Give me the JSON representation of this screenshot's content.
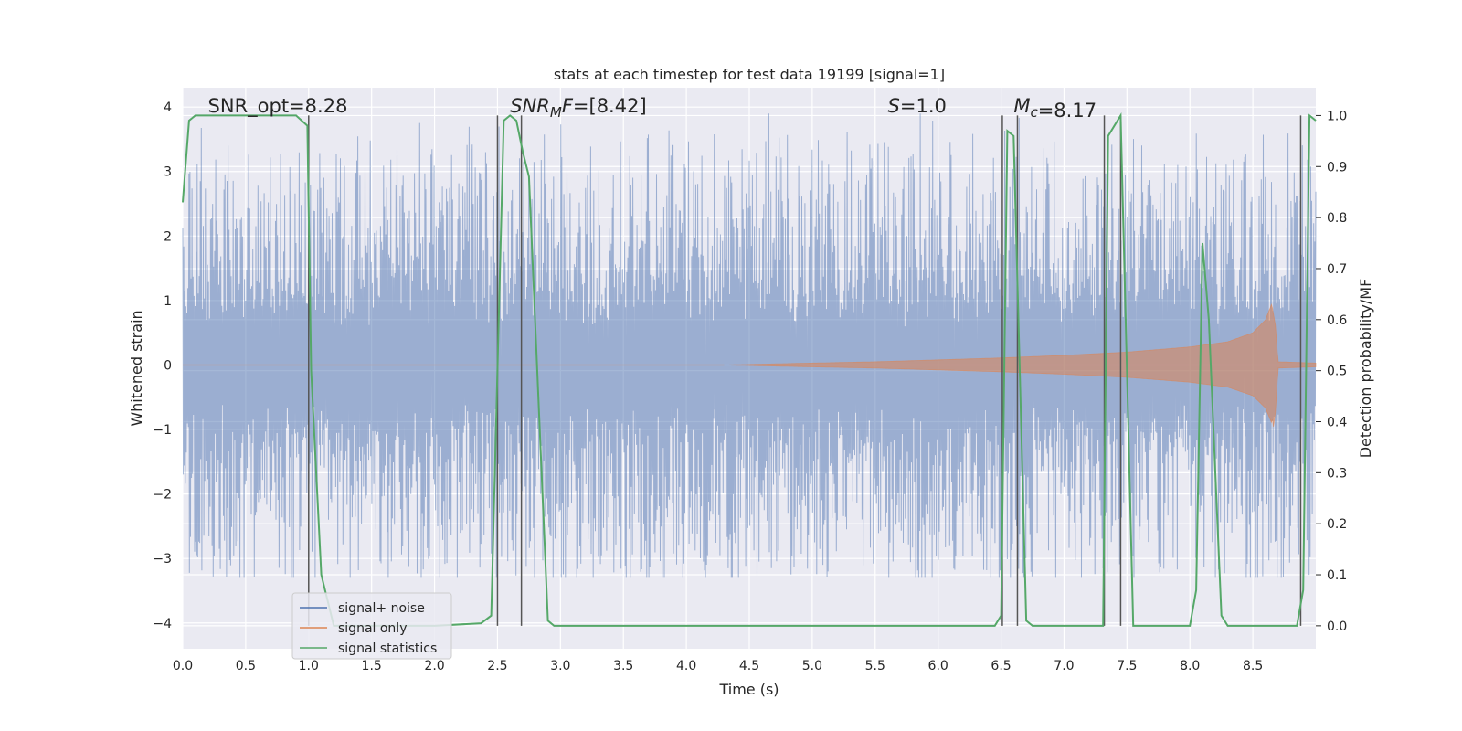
{
  "chart_data": {
    "type": "line",
    "title": "stats at each timestep for test data 19199 [signal=1]",
    "xlabel": "Time (s)",
    "ylabel_left": "Whitened strain",
    "ylabel_right": "Detection probability/MF",
    "xlim": [
      0.0,
      9.0
    ],
    "ylim_left": [
      -4.4,
      4.3
    ],
    "ylim_right": [
      -0.045,
      1.0545
    ],
    "x_ticks": [
      0.0,
      0.5,
      1.0,
      1.5,
      2.0,
      2.5,
      3.0,
      3.5,
      4.0,
      4.5,
      5.0,
      5.5,
      6.0,
      6.5,
      7.0,
      7.5,
      8.0,
      8.5
    ],
    "x_tick_labels": [
      "0.0",
      "0.5",
      "1.0",
      "1.5",
      "2.0",
      "2.5",
      "3.0",
      "3.5",
      "4.0",
      "4.5",
      "5.0",
      "5.5",
      "6.0",
      "6.5",
      "7.0",
      "7.5",
      "8.0",
      "8.5"
    ],
    "y_left_ticks": [
      -4,
      -3,
      -2,
      -1,
      0,
      1,
      2,
      3,
      4
    ],
    "y_left_tick_labels": [
      "−4",
      "−3",
      "−2",
      "−1",
      "0",
      "1",
      "2",
      "3",
      "4"
    ],
    "y_right_ticks": [
      0.0,
      0.1,
      0.2,
      0.3,
      0.4,
      0.5,
      0.6,
      0.7,
      0.8,
      0.9,
      1.0
    ],
    "y_right_tick_labels": [
      "0.0",
      "0.1",
      "0.2",
      "0.3",
      "0.4",
      "0.5",
      "0.6",
      "0.7",
      "0.8",
      "0.9",
      "1.0"
    ],
    "grid": true,
    "annotations": [
      {
        "text": "SNR_opt=8.28",
        "x": 0.2,
        "y": 4.0
      },
      {
        "text": "SNR_MF=[8.42]",
        "x": 2.6,
        "y": 4.0
      },
      {
        "text": "S=1.0",
        "x": 5.6,
        "y": 4.0
      },
      {
        "text": "M_c=8.17",
        "x": 6.6,
        "y": 4.0
      }
    ],
    "vertical_lines_x": [
      1.0,
      2.5,
      2.69,
      6.51,
      6.63,
      7.32,
      7.45,
      8.88
    ],
    "legend": {
      "placement": "lower-left",
      "entries": [
        {
          "label": "signal+ noise",
          "color": "#4c72b0"
        },
        {
          "label": "signal only",
          "color": "#dd8452"
        },
        {
          "label": "signal statistics",
          "color": "#55a868"
        }
      ]
    },
    "series": [
      {
        "name": "signal+ noise",
        "axis": "left",
        "color": "#4c72b0",
        "description": "whitened noisy strain, roughly spanning -3.3 to 3.9",
        "envelope_x": [
          0,
          9
        ],
        "envelope_range": [
          -3.3,
          3.9
        ]
      },
      {
        "name": "signal only",
        "axis": "left",
        "color": "#dd8452",
        "x": [
          4.3,
          5.0,
          5.5,
          6.0,
          6.5,
          7.0,
          7.5,
          8.0,
          8.3,
          8.5,
          8.6,
          8.65,
          8.68,
          8.7,
          9.0
        ],
        "amplitude": [
          0.0,
          0.03,
          0.05,
          0.08,
          0.11,
          0.15,
          0.2,
          0.28,
          0.36,
          0.5,
          0.7,
          0.95,
          0.6,
          0.05,
          0.03
        ]
      },
      {
        "name": "signal statistics",
        "axis": "right",
        "color": "#55a868",
        "x": [
          0.0,
          0.05,
          0.1,
          0.9,
          0.99,
          1.02,
          1.1,
          1.2,
          2.0,
          2.37,
          2.45,
          2.55,
          2.6,
          2.65,
          2.7,
          2.75,
          2.9,
          2.95,
          6.45,
          6.5,
          6.55,
          6.6,
          6.7,
          6.75,
          7.31,
          7.35,
          7.45,
          7.5,
          7.55,
          8.0,
          8.05,
          8.1,
          8.15,
          8.25,
          8.3,
          8.85,
          8.9,
          8.95,
          9.0
        ],
        "y": [
          0.83,
          0.99,
          1.0,
          1.0,
          0.98,
          0.5,
          0.1,
          0.0,
          0.0,
          0.005,
          0.02,
          0.99,
          1.0,
          0.99,
          0.93,
          0.88,
          0.01,
          0.0,
          0.0,
          0.02,
          0.97,
          0.96,
          0.01,
          0.0,
          0.0,
          0.96,
          1.0,
          0.5,
          0.0,
          0.0,
          0.07,
          0.75,
          0.6,
          0.02,
          0.0,
          0.0,
          0.07,
          1.0,
          0.99
        ]
      }
    ]
  },
  "colors": {
    "axes_bg": "#eaeaf2",
    "grid": "#ffffff",
    "vline": "#555555"
  }
}
